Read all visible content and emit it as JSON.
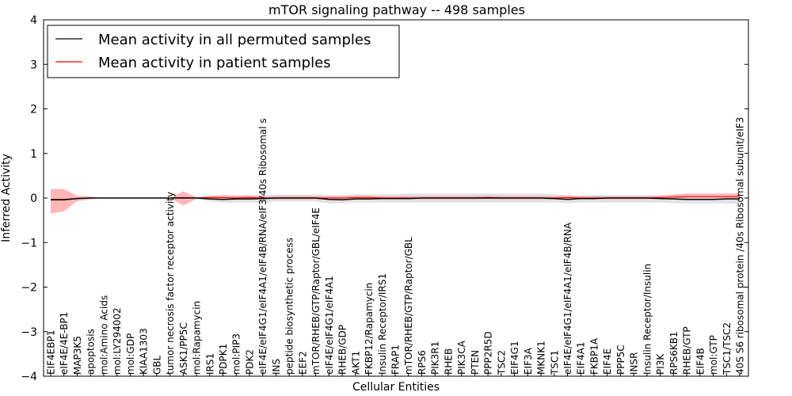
{
  "chart_data": {
    "type": "line",
    "title": "mTOR signaling pathway -- 498 samples",
    "xlabel": "Cellular Entities",
    "ylabel": "Inferred Activity",
    "ylim": [
      -4,
      4
    ],
    "yticks": [
      -4,
      -3,
      -2,
      -1,
      0,
      1,
      2,
      3,
      4
    ],
    "legend_position": "top-left",
    "colors": {
      "permuted": "#000000",
      "patient": "#ff0000",
      "permuted_band": "#c8c8c8",
      "patient_band": "#ff9999"
    },
    "categories": [
      "EIF4EBP1",
      "eIF4E/4E-BP1",
      "MAP3K5",
      "apoptosis",
      "mol:Amino Acids",
      "mol:LY294002",
      "mol:GDP",
      "KIAA1303",
      "GBL",
      "tumor necrosis factor receptor activity",
      "ASK1/PP5C",
      "mol:Rapamycin",
      "IRS1",
      "PDPK1",
      "mol:PIP3",
      "PDK2",
      "eIF4E/eIF4G1/eIF4A1/eIF4B/RNA/eIF3/40s Ribosomal s",
      "INS",
      "peptide biosynthetic process",
      "EEF2",
      "mTOR/RHEB/GTP/Raptor/GBL/eIF4E",
      "eIF4E/eIF4G1/eIF4A1",
      "RHEB/GDP",
      "AKT1",
      "FKBP12/Rapamycin",
      "Insulin Receptor/IRS1",
      "FRAP1",
      "mTOR/RHEB/GTP/Raptor/GBL",
      "RPS6",
      "PIK3R1",
      "RHEB",
      "PIK3CA",
      "PTEN",
      "PPP2R5D",
      "TSC2",
      "EIF4G1",
      "EIF3A",
      "MKNK1",
      "TSC1",
      "eIF4E/eIF4G1/eIF4A1/eIF4B/RNA",
      "EIF4A1",
      "FKBP1A",
      "EIF4E",
      "PPP5C",
      "INSR",
      "Insulin Receptor/Insulin",
      "PI3K",
      "RPS6KB1",
      "RHEB/GTP",
      "EIF4B",
      "mol:GTP",
      "TSC1/TSC2",
      "40S S6 ribosomal protein /40s Ribosomal subunit/eIF3"
    ],
    "series": [
      {
        "name": "Mean activity in all permuted samples",
        "values": [
          -0.04,
          -0.04,
          -0.01,
          0.0,
          0.0,
          0.0,
          0.0,
          0.0,
          0.0,
          0.0,
          0.0,
          0.0,
          -0.02,
          -0.03,
          -0.02,
          -0.02,
          -0.01,
          0.0,
          0.0,
          0.0,
          0.0,
          -0.03,
          -0.04,
          -0.02,
          -0.02,
          -0.01,
          -0.01,
          -0.01,
          0.0,
          0.0,
          0.0,
          0.0,
          0.0,
          0.0,
          0.0,
          0.0,
          0.0,
          0.0,
          -0.01,
          -0.03,
          -0.01,
          -0.01,
          0.0,
          0.0,
          0.0,
          0.0,
          -0.01,
          -0.02,
          -0.03,
          -0.03,
          -0.03,
          -0.02,
          -0.02
        ],
        "lower": [
          -0.06,
          -0.06,
          -0.02,
          0.0,
          0.0,
          0.0,
          0.0,
          0.0,
          0.0,
          0.0,
          0.0,
          0.0,
          -0.08,
          -0.1,
          -0.1,
          -0.1,
          -0.1,
          -0.08,
          -0.08,
          -0.08,
          -0.08,
          -0.12,
          -0.12,
          -0.1,
          -0.1,
          -0.1,
          -0.1,
          -0.1,
          -0.1,
          -0.1,
          -0.1,
          -0.1,
          -0.1,
          -0.1,
          -0.1,
          -0.1,
          -0.1,
          -0.1,
          -0.1,
          -0.12,
          -0.1,
          -0.1,
          -0.1,
          -0.1,
          -0.1,
          -0.1,
          -0.1,
          -0.12,
          -0.12,
          -0.12,
          -0.12,
          -0.12,
          -0.12
        ],
        "upper": [
          -0.02,
          -0.02,
          0.0,
          0.0,
          0.0,
          0.0,
          0.0,
          0.0,
          0.0,
          0.0,
          0.0,
          0.0,
          0.04,
          0.06,
          0.06,
          0.06,
          0.06,
          0.08,
          0.08,
          0.08,
          0.08,
          0.06,
          0.06,
          0.08,
          0.08,
          0.08,
          0.08,
          0.1,
          0.1,
          0.1,
          0.1,
          0.1,
          0.1,
          0.1,
          0.1,
          0.1,
          0.1,
          0.1,
          0.08,
          0.06,
          0.06,
          0.06,
          0.06,
          0.06,
          0.06,
          0.06,
          0.06,
          0.06,
          0.06,
          0.06,
          0.06,
          0.06,
          0.08
        ]
      },
      {
        "name": "Mean activity in patient samples",
        "values": [
          -0.03,
          -0.03,
          -0.01,
          0.0,
          0.0,
          0.0,
          0.0,
          0.0,
          0.0,
          0.0,
          0.01,
          0.0,
          0.01,
          0.01,
          0.0,
          0.01,
          0.0,
          0.0,
          0.0,
          0.0,
          0.0,
          0.0,
          0.0,
          0.01,
          0.01,
          0.0,
          0.0,
          0.0,
          0.0,
          0.0,
          0.0,
          0.0,
          0.0,
          0.01,
          0.0,
          0.0,
          0.0,
          0.0,
          0.0,
          0.01,
          0.0,
          0.0,
          0.0,
          0.0,
          0.0,
          0.0,
          0.01,
          0.02,
          0.03,
          0.03,
          0.03,
          0.03,
          0.03
        ],
        "lower": [
          -0.35,
          -0.3,
          -0.07,
          -0.03,
          0.0,
          0.0,
          0.0,
          0.0,
          0.0,
          0.0,
          -0.17,
          -0.02,
          -0.03,
          -0.04,
          -0.04,
          -0.04,
          -0.03,
          -0.03,
          -0.03,
          -0.03,
          -0.03,
          -0.03,
          -0.03,
          -0.02,
          -0.02,
          -0.03,
          -0.03,
          -0.03,
          -0.03,
          -0.03,
          -0.03,
          -0.03,
          -0.03,
          -0.02,
          -0.03,
          -0.03,
          -0.03,
          -0.03,
          -0.03,
          -0.02,
          -0.03,
          -0.03,
          -0.03,
          -0.03,
          -0.03,
          -0.03,
          -0.02,
          -0.01,
          0.0,
          0.0,
          0.0,
          0.0,
          0.0
        ],
        "upper": [
          0.2,
          0.2,
          0.05,
          0.03,
          0.0,
          0.0,
          0.0,
          0.0,
          0.0,
          0.0,
          0.15,
          0.02,
          0.05,
          0.06,
          0.05,
          0.06,
          0.04,
          0.04,
          0.04,
          0.04,
          0.04,
          0.04,
          0.04,
          0.05,
          0.05,
          0.04,
          0.04,
          0.04,
          0.04,
          0.04,
          0.04,
          0.04,
          0.04,
          0.05,
          0.04,
          0.04,
          0.04,
          0.04,
          0.04,
          0.05,
          0.04,
          0.04,
          0.04,
          0.04,
          0.04,
          0.04,
          0.05,
          0.08,
          0.1,
          0.1,
          0.1,
          0.1,
          0.1
        ]
      }
    ]
  }
}
